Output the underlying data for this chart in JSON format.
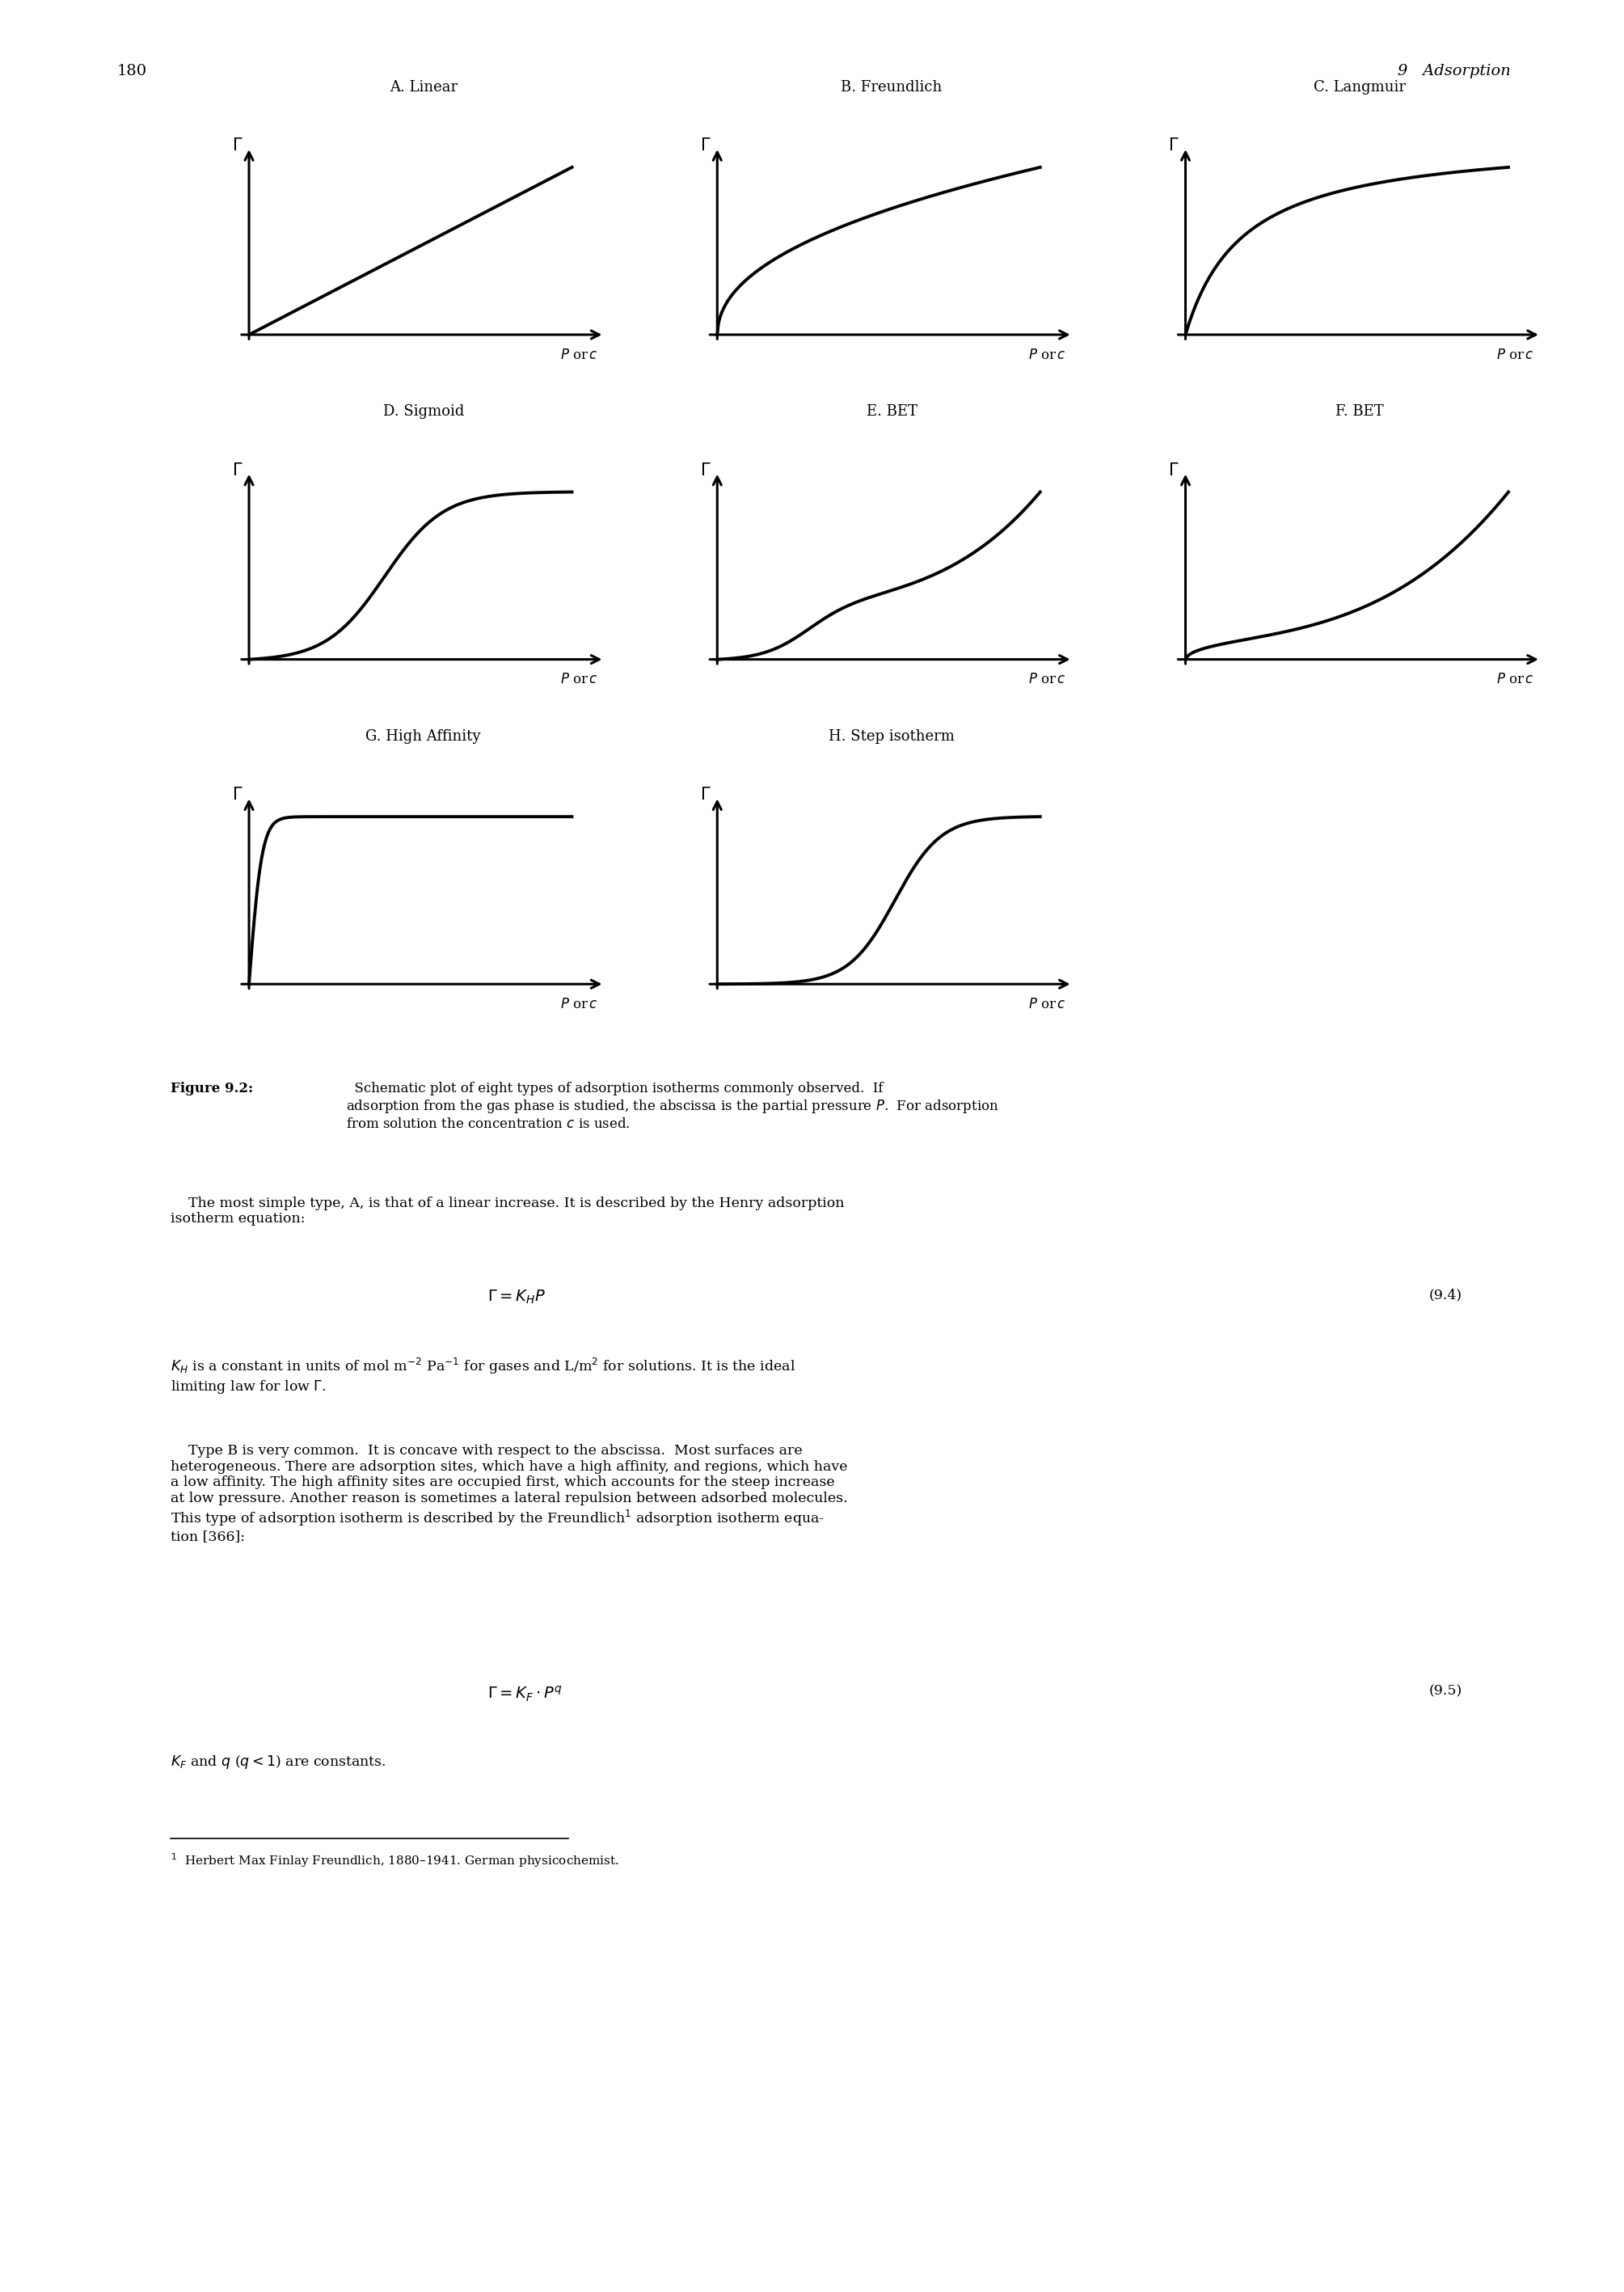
{
  "page_number": "180",
  "chapter_header": "9   Adsorption",
  "plots": [
    {
      "label": "A. Linear",
      "row": 0,
      "col": 0,
      "type": "linear"
    },
    {
      "label": "B. Freundlich",
      "row": 0,
      "col": 1,
      "type": "freundlich"
    },
    {
      "label": "C. Langmuir",
      "row": 0,
      "col": 2,
      "type": "langmuir"
    },
    {
      "label": "D. Sigmoid",
      "row": 1,
      "col": 0,
      "type": "sigmoid"
    },
    {
      "label": "E. BET",
      "row": 1,
      "col": 1,
      "type": "bet_e"
    },
    {
      "label": "F. BET",
      "row": 1,
      "col": 2,
      "type": "bet_f"
    },
    {
      "label": "G. High Affinity",
      "row": 2,
      "col": 0,
      "type": "high_affinity"
    },
    {
      "label": "H. Step isotherm",
      "row": 2,
      "col": 1,
      "type": "step"
    }
  ],
  "background_color": "#ffffff",
  "line_color": "#000000",
  "line_width": 2.8,
  "axis_linewidth": 2.2,
  "caption_bold": "Figure 9.2:",
  "caption_normal": "  Schematic plot of eight types of adsorption isotherms commonly observed.  If\nadsorption from the gas phase is studied, the abscissa is the partial pressure ",
  "caption_P": "P",
  "caption_end": ".  For adsorption\nfrom solution the concentration ",
  "caption_c": "c",
  "caption_final": " is used.",
  "body_para1": "The most simple type, A, is that of a linear increase. It is described by the Henry adsorption\nisotherm equation:",
  "eq1": "Γ = K_H P",
  "eq1_num": "(9.4)",
  "body_para2_a": "K",
  "body_para2_b": "H",
  "body_para2_c": " is a constant in units of mol m",
  "body_para2_d": "−2",
  "body_para2_e": " Pa",
  "body_para2_f": "−1",
  "body_para2_g": " for gases and L/m",
  "body_para2_h": "2",
  "body_para2_i": " for solutions. It is the ideal\nlimiting law for low Γ.",
  "body_para3": "    Type B is very common.  It is concave with respect to the abscissa.  Most surfaces are\nheterogeneous. There are adsorption sites, which have a high affinity, and regions, which have\na low affinity. The high affinity sites are occupied first, which accounts for the steep increase\nat low pressure. Another reason is sometimes a lateral repulsion between adsorbed molecules.\nThis type of adsorption isotherm is described by the Freundlich",
  "footnote_ref": "1",
  "body_para3_end": " adsorption isotherm equa-\ntion [366]:",
  "eq2": "Γ = K_F · P^q",
  "eq2_num": "(9.5)",
  "body_para4_a": "K",
  "body_para4_b": "F",
  "body_para4_c": " and ",
  "body_para4_d": "q",
  "body_para4_e": " (q < 1) are constants.",
  "footnote": "1  Herbert Max Finlay Freundlich, 1880–1941. German physicochemist."
}
